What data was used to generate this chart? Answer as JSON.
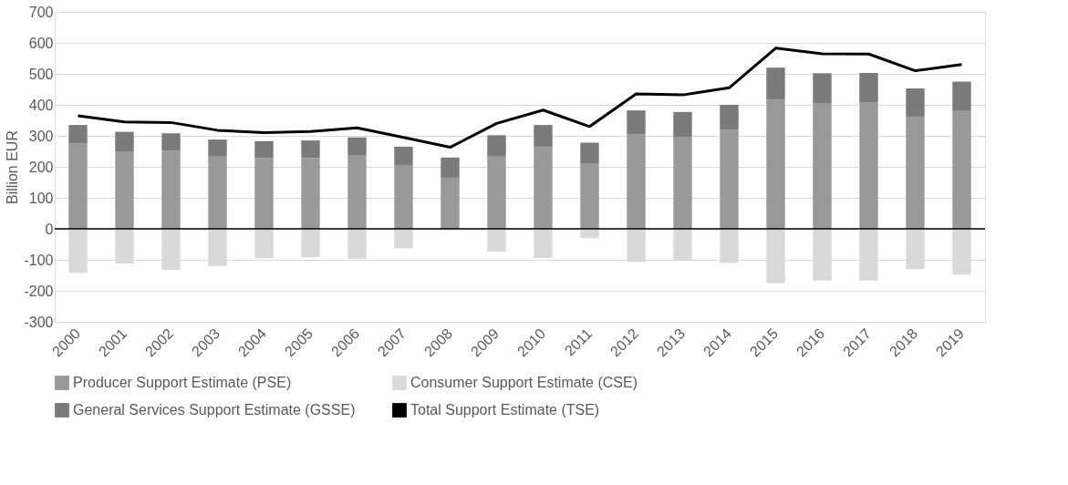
{
  "chart_data": {
    "type": "bar",
    "ylabel": "Billion EUR",
    "stacked": true,
    "categories": [
      "2000",
      "2001",
      "2002",
      "2003",
      "2004",
      "2005",
      "2006",
      "2007",
      "2008",
      "2009",
      "2010",
      "2011",
      "2012",
      "2013",
      "2014",
      "2015",
      "2016",
      "2017",
      "2018",
      "2019"
    ],
    "series": [
      {
        "name": "Producer Support Estimate (PSE)",
        "color": "#999999",
        "values": [
          275,
          250,
          252,
          233,
          228,
          229,
          238,
          206,
          165,
          235,
          265,
          210,
          305,
          297,
          320,
          417,
          406,
          407,
          362,
          382
        ]
      },
      {
        "name": "Consumer Support Estimate (CSE)",
        "color": "#d9d9d9",
        "values": [
          -142,
          -112,
          -132,
          -120,
          -95,
          -92,
          -97,
          -63,
          -2,
          -73,
          -94,
          -30,
          -107,
          -100,
          -110,
          -175,
          -167,
          -167,
          -130,
          -148
        ]
      },
      {
        "name": "General Services Support Estimate (GSSE)",
        "color": "#7a7a7a",
        "values": [
          60,
          63,
          56,
          55,
          55,
          56,
          57,
          59,
          65,
          67,
          70,
          68,
          77,
          80,
          80,
          103,
          96,
          96,
          91,
          93
        ]
      },
      {
        "name": "Total Support Estimate (TSE)",
        "type": "line",
        "color": "#000000",
        "values": [
          365,
          345,
          343,
          318,
          310,
          314,
          326,
          295,
          263,
          340,
          383,
          330,
          435,
          432,
          455,
          583,
          565,
          564,
          510,
          530
        ]
      }
    ],
    "ylim": [
      -300,
      700
    ],
    "yticks": [
      -300,
      -200,
      -100,
      0,
      100,
      200,
      300,
      400,
      500,
      600,
      700
    ],
    "grid": "y",
    "legend": "bottom"
  }
}
